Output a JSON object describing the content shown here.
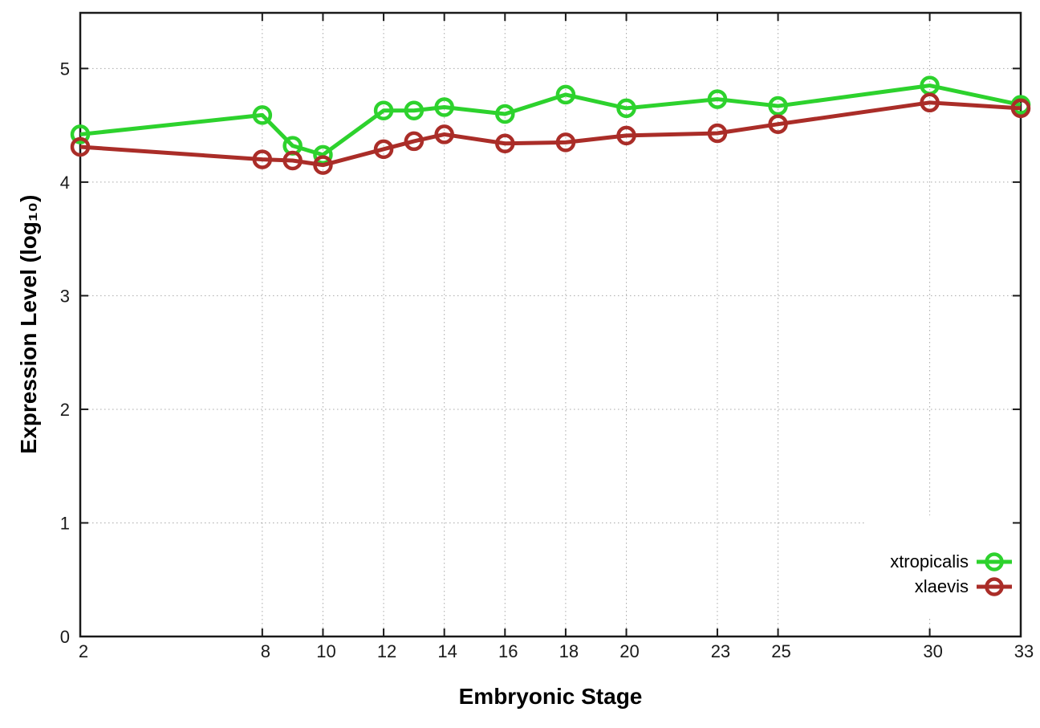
{
  "chart_data": {
    "type": "line",
    "title": "",
    "xlabel": "Embryonic Stage",
    "ylabel": "Expression Level (log₁₀)",
    "x": [
      2,
      8,
      9,
      10,
      12,
      13,
      14,
      16,
      18,
      20,
      23,
      25,
      30,
      33
    ],
    "series": [
      {
        "name": "xtropicalis",
        "color": "#2dd22d",
        "marker": "open-circle",
        "values": [
          4.42,
          4.59,
          4.32,
          4.24,
          4.63,
          4.63,
          4.66,
          4.6,
          4.77,
          4.65,
          4.73,
          4.67,
          4.85,
          4.68
        ]
      },
      {
        "name": "xlaevis",
        "color": "#aa2d28",
        "marker": "open-circle",
        "values": [
          4.31,
          4.2,
          4.19,
          4.15,
          4.29,
          4.36,
          4.42,
          4.34,
          4.35,
          4.41,
          4.43,
          4.51,
          4.7,
          4.65
        ]
      }
    ],
    "xlim": [
      2,
      33
    ],
    "ylim": [
      0,
      5.49
    ],
    "xticks": [
      2,
      8,
      10,
      12,
      14,
      16,
      18,
      20,
      23,
      25,
      30,
      33
    ],
    "xtick_labels": [
      "2",
      "8",
      "10",
      "12",
      "14",
      "16",
      "18",
      "20",
      "23",
      "25",
      "30",
      "33"
    ],
    "yticks": [
      0,
      1,
      2,
      3,
      4,
      5
    ],
    "ytick_labels": [
      "0",
      "1",
      "2",
      "3",
      "4",
      "5"
    ],
    "grid": "dotted",
    "grid_color": "#a8a8a8",
    "axis_color": "#1a1a1a",
    "tick_label_color": "#1a1a1a",
    "legend_position": "inside-bottom-right"
  }
}
